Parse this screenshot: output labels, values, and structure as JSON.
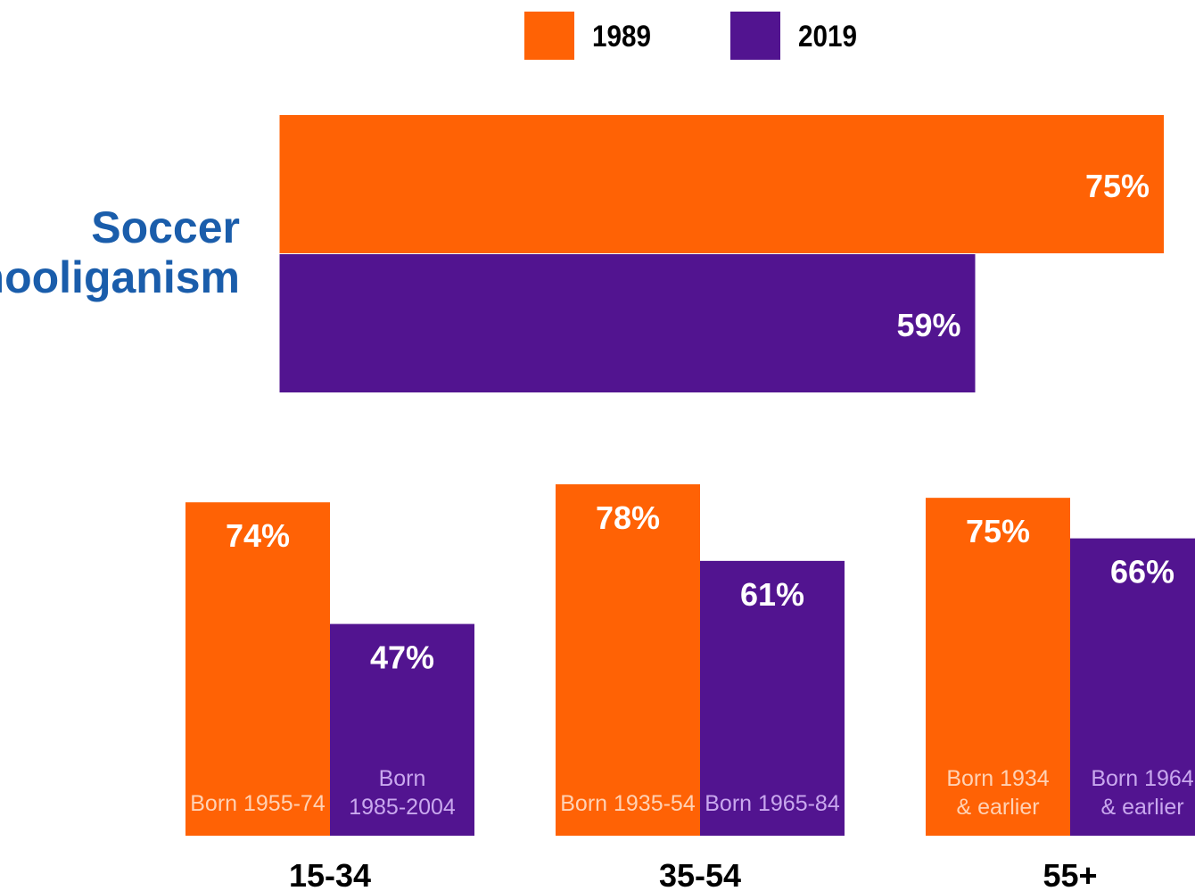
{
  "colors": {
    "c1989": "#FF6205",
    "c2019": "#521490",
    "title": "#1A5DAB",
    "born_on_orange": "#FFD2B5",
    "born_on_purple": "#C9A8EE"
  },
  "chart_data": [
    {
      "type": "bar",
      "orientation": "horizontal",
      "title": "Soccer hooliganism",
      "title_lines": [
        "Soccer",
        "hooliganism"
      ],
      "series": [
        {
          "name": "1989",
          "value": 75,
          "label": "75%"
        },
        {
          "name": "2019",
          "value": 59,
          "label": "59%"
        }
      ],
      "xlim": [
        0,
        75.3
      ],
      "legend": {
        "position": "top-center",
        "entries": [
          "1989",
          "2019"
        ]
      }
    },
    {
      "type": "bar",
      "categories": [
        "15-34",
        "35-54",
        "55+"
      ],
      "series": [
        {
          "name": "1989",
          "values": [
            74,
            78,
            75
          ],
          "labels": [
            "74%",
            "78%",
            "75%"
          ],
          "born": [
            [
              "Born 1955-74"
            ],
            [
              "Born 1935-54"
            ],
            [
              "Born 1934",
              "& earlier"
            ]
          ]
        },
        {
          "name": "2019",
          "values": [
            47,
            61,
            66
          ],
          "labels": [
            "47%",
            "61%",
            "66%"
          ],
          "born": [
            [
              "Born",
              "1985-2004"
            ],
            [
              "Born 1965-84"
            ],
            [
              "Born 1964",
              "& earlier"
            ]
          ]
        }
      ],
      "ylim": [
        0,
        80.8
      ]
    }
  ]
}
